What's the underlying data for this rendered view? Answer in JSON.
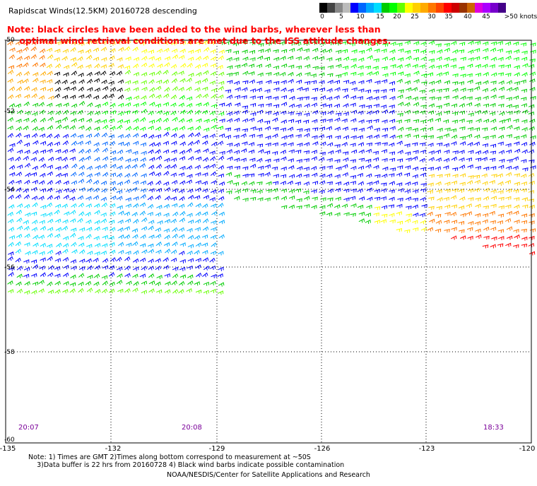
{
  "title": "Rapidscat Winds(12.5KM) 20160728 descending",
  "note_line1": "Note: black circles have been added to the wind barbs, wherever less than",
  "note_line2": "optimal wind retrieval conditions are met due to the ISS attitude changes.",
  "colorbar": {
    "labels": [
      "0",
      "5",
      "10",
      "15",
      "20",
      "25",
      "30",
      "35",
      "40",
      "45",
      ">50 knots"
    ],
    "colors": [
      "#000000",
      "#444444",
      "#888888",
      "#bbbbbb",
      "#0000ff",
      "#0066ff",
      "#00aaff",
      "#00ddff",
      "#00cc00",
      "#00ff00",
      "#66ff00",
      "#ffff00",
      "#ffd000",
      "#ffaa00",
      "#ff7700",
      "#ff4400",
      "#ff0000",
      "#cc0000",
      "#993300",
      "#cc6600",
      "#dd00dd",
      "#aa00ff",
      "#7700cc",
      "#440088"
    ]
  },
  "latitudes": [
    "-50",
    "-52",
    "-54",
    "-56",
    "-58",
    "-60"
  ],
  "longitudes": [
    "-135",
    "-132",
    "-129",
    "-126",
    "-123",
    "-120"
  ],
  "times": [
    "20:07",
    "20:08",
    "18:33"
  ],
  "footnote_line1": "Note: 1) Times are GMT 2)Times along bottom correspond to measurement at ~50S",
  "footnote_line2": "3)Data buffer is 22 hrs from 20160728 4) Black wind barbs indicate possible contamination",
  "credit": "NOAA/NESDIS/Center for Satellite Applications and Research"
}
